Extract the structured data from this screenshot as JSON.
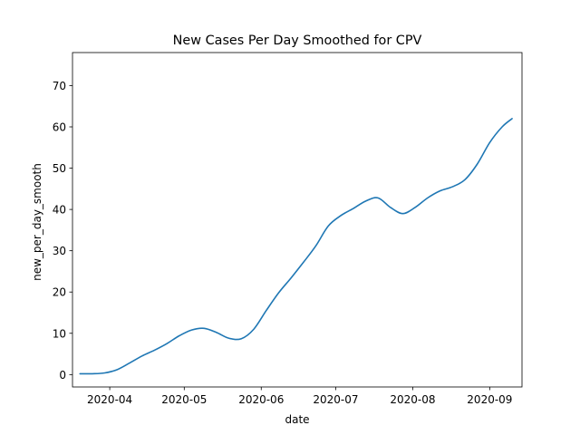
{
  "chart_data": {
    "type": "line",
    "title": "New Cases Per Day Smoothed for CPV",
    "xlabel": "date",
    "ylabel": "new_per_day_smooth",
    "xlim": [
      "2020-03-17",
      "2020-09-14"
    ],
    "ylim": [
      -3,
      78
    ],
    "x_ticks": [
      "2020-04-01",
      "2020-05-01",
      "2020-06-01",
      "2020-07-01",
      "2020-08-01",
      "2020-09-01"
    ],
    "x_tick_labels": [
      "2020-04",
      "2020-05",
      "2020-06",
      "2020-07",
      "2020-08",
      "2020-09"
    ],
    "y_ticks": [
      0,
      10,
      20,
      30,
      40,
      50,
      60,
      70
    ],
    "y_tick_labels": [
      "0",
      "10",
      "20",
      "30",
      "40",
      "50",
      "60",
      "70"
    ],
    "grid": false,
    "legend": false,
    "series": [
      {
        "color": "#1f77b4",
        "x": [
          "2020-03-20",
          "2020-03-25",
          "2020-03-30",
          "2020-04-04",
          "2020-04-09",
          "2020-04-14",
          "2020-04-19",
          "2020-04-24",
          "2020-04-29",
          "2020-05-04",
          "2020-05-09",
          "2020-05-14",
          "2020-05-19",
          "2020-05-24",
          "2020-05-29",
          "2020-06-03",
          "2020-06-08",
          "2020-06-13",
          "2020-06-18",
          "2020-06-23",
          "2020-06-28",
          "2020-07-03",
          "2020-07-08",
          "2020-07-13",
          "2020-07-18",
          "2020-07-23",
          "2020-07-28",
          "2020-08-02",
          "2020-08-07",
          "2020-08-12",
          "2020-08-17",
          "2020-08-22",
          "2020-08-27",
          "2020-09-01",
          "2020-09-06",
          "2020-09-10"
        ],
        "y": [
          0.2,
          0.2,
          0.4,
          1.2,
          2.8,
          4.5,
          5.9,
          7.5,
          9.4,
          10.8,
          11.2,
          10.2,
          8.8,
          8.7,
          11.0,
          15.5,
          19.8,
          23.4,
          27.2,
          31.2,
          36.0,
          38.5,
          40.2,
          42.0,
          42.8,
          40.5,
          39.0,
          40.5,
          42.8,
          44.5,
          45.5,
          47.2,
          51.0,
          56.2,
          60.0,
          62.0
        ]
      }
    ]
  }
}
